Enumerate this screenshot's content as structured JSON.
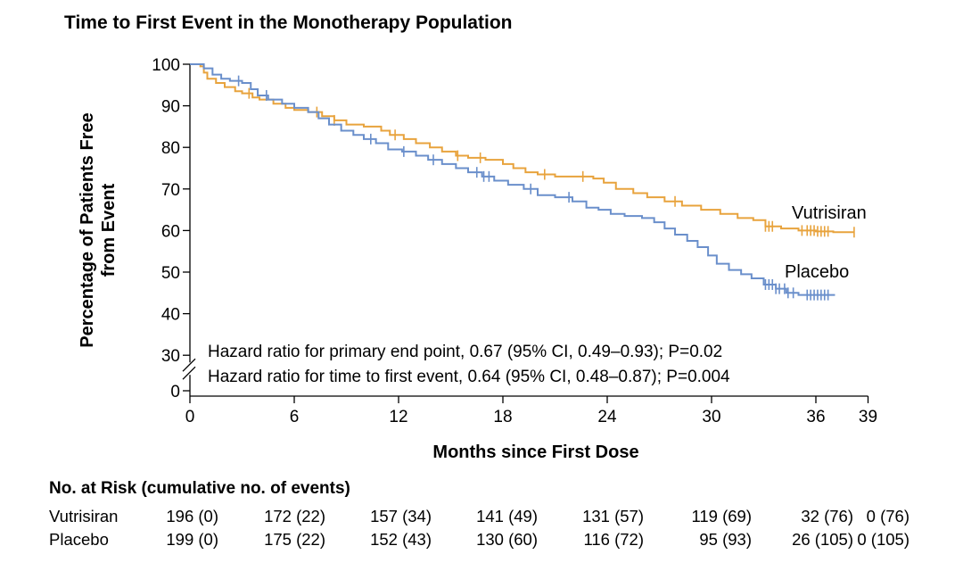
{
  "chart_data": {
    "type": "line",
    "title": "Time to First Event in the Monotherapy Population",
    "xlabel": "Months since First Dose",
    "ylabel_lines": [
      "Percentage of Patients Free",
      "from Event"
    ],
    "xlim": [
      0,
      39
    ],
    "xticks": [
      0,
      6,
      12,
      18,
      24,
      30,
      36,
      39
    ],
    "yticks": [
      30,
      40,
      50,
      60,
      70,
      80,
      90,
      100
    ],
    "y_break_label": "0",
    "annotations": [
      "Hazard ratio for primary end point, 0.67 (95% CI, 0.49–0.93); P=0.02",
      "Hazard ratio for time to first event, 0.64 (95% CI, 0.48–0.87); P=0.004"
    ],
    "series": [
      {
        "name": "Vutrisiran",
        "color": "#E8A33D",
        "x": [
          0,
          0.6,
          0.8,
          1.0,
          1.5,
          2.0,
          2.6,
          3.0,
          3.6,
          4.0,
          4.8,
          5.5,
          6.0,
          6.8,
          7.6,
          8.3,
          9.0,
          10.0,
          11.0,
          11.5,
          12.3,
          13.0,
          13.8,
          14.5,
          15.3,
          16.0,
          17.0,
          18.0,
          18.6,
          19.3,
          20.0,
          21.0,
          22.5,
          23.2,
          23.8,
          24.5,
          25.5,
          26.3,
          27.3,
          28.3,
          29.4,
          30.5,
          31.5,
          32.4,
          33.1,
          34.0,
          35.0,
          36.0,
          37.0,
          38.2
        ],
        "y": [
          100,
          99.5,
          98,
          96.5,
          95.5,
          94.5,
          93.5,
          93,
          92,
          91.5,
          90.5,
          89.5,
          89,
          88.5,
          87.5,
          86.5,
          85.5,
          85,
          84,
          83,
          82,
          81,
          80,
          79,
          78,
          77.5,
          77,
          76,
          75,
          74,
          73.5,
          73,
          73,
          72.5,
          71.5,
          70,
          69,
          68,
          67,
          66,
          65,
          64,
          63,
          62.5,
          61,
          60.5,
          60,
          59.8,
          59.6,
          59.6
        ],
        "censor_x": [
          3.4,
          7.3,
          8.3,
          11.8,
          15.4,
          16.7,
          20.4,
          22.6,
          27.9,
          33.1,
          33.3,
          33.5,
          35.2,
          35.5,
          35.7,
          35.9,
          36.1,
          36.3,
          36.5,
          36.7,
          38.2
        ]
      },
      {
        "name": "Placebo",
        "color": "#6A8FCB",
        "x": [
          0,
          0.8,
          1.3,
          1.8,
          2.3,
          3.0,
          3.5,
          3.9,
          4.5,
          5.3,
          6.0,
          6.8,
          7.4,
          8.0,
          8.7,
          9.4,
          10.0,
          10.7,
          11.4,
          12.2,
          13.0,
          13.7,
          14.5,
          15.3,
          16.0,
          16.8,
          17.5,
          18.3,
          19.2,
          20.0,
          21.0,
          22.0,
          22.8,
          23.5,
          24.2,
          25.0,
          26.0,
          26.7,
          27.3,
          27.9,
          28.6,
          29.2,
          29.8,
          30.3,
          31.0,
          31.7,
          32.3,
          33.0,
          33.7,
          34.3,
          35.0,
          36.0,
          37.1
        ],
        "y": [
          100,
          99,
          97.5,
          96.5,
          96,
          95.5,
          94,
          92.5,
          91.5,
          90.5,
          89.5,
          88.5,
          87,
          85.5,
          84,
          83,
          82,
          81,
          79.5,
          79,
          78,
          77,
          76,
          75,
          74,
          73,
          72,
          71,
          70,
          68.5,
          68,
          67,
          65.5,
          65,
          64,
          63.5,
          63,
          62,
          60.5,
          59,
          57.5,
          56,
          54,
          52,
          50.5,
          49.5,
          48.5,
          47,
          46,
          45,
          44.5,
          44.5,
          44.5
        ],
        "censor_x": [
          2.8,
          4.4,
          10.4,
          12.3,
          14.0,
          16.5,
          16.9,
          17.2,
          19.6,
          21.8,
          33.1,
          33.3,
          33.5,
          33.7,
          33.9,
          34.2,
          34.4,
          34.7,
          35.5,
          35.7,
          35.9,
          36.1,
          36.3,
          36.5,
          36.7
        ]
      }
    ],
    "risk_table": {
      "title": "No. at Risk (cumulative no. of events)",
      "months": [
        0,
        6,
        12,
        18,
        24,
        30,
        36,
        39
      ],
      "rows": [
        {
          "label": "Vutrisiran",
          "cells": [
            "196 (0)",
            "172 (22)",
            "157 (34)",
            "141 (49)",
            "131 (57)",
            "119 (69)",
            "32 (76)",
            "0 (76)"
          ]
        },
        {
          "label": "Placebo",
          "cells": [
            "199 (0)",
            "175 (22)",
            "152 (43)",
            "130 (60)",
            "116 (72)",
            "95 (93)",
            "26 (105)",
            "0 (105)"
          ]
        }
      ]
    }
  }
}
